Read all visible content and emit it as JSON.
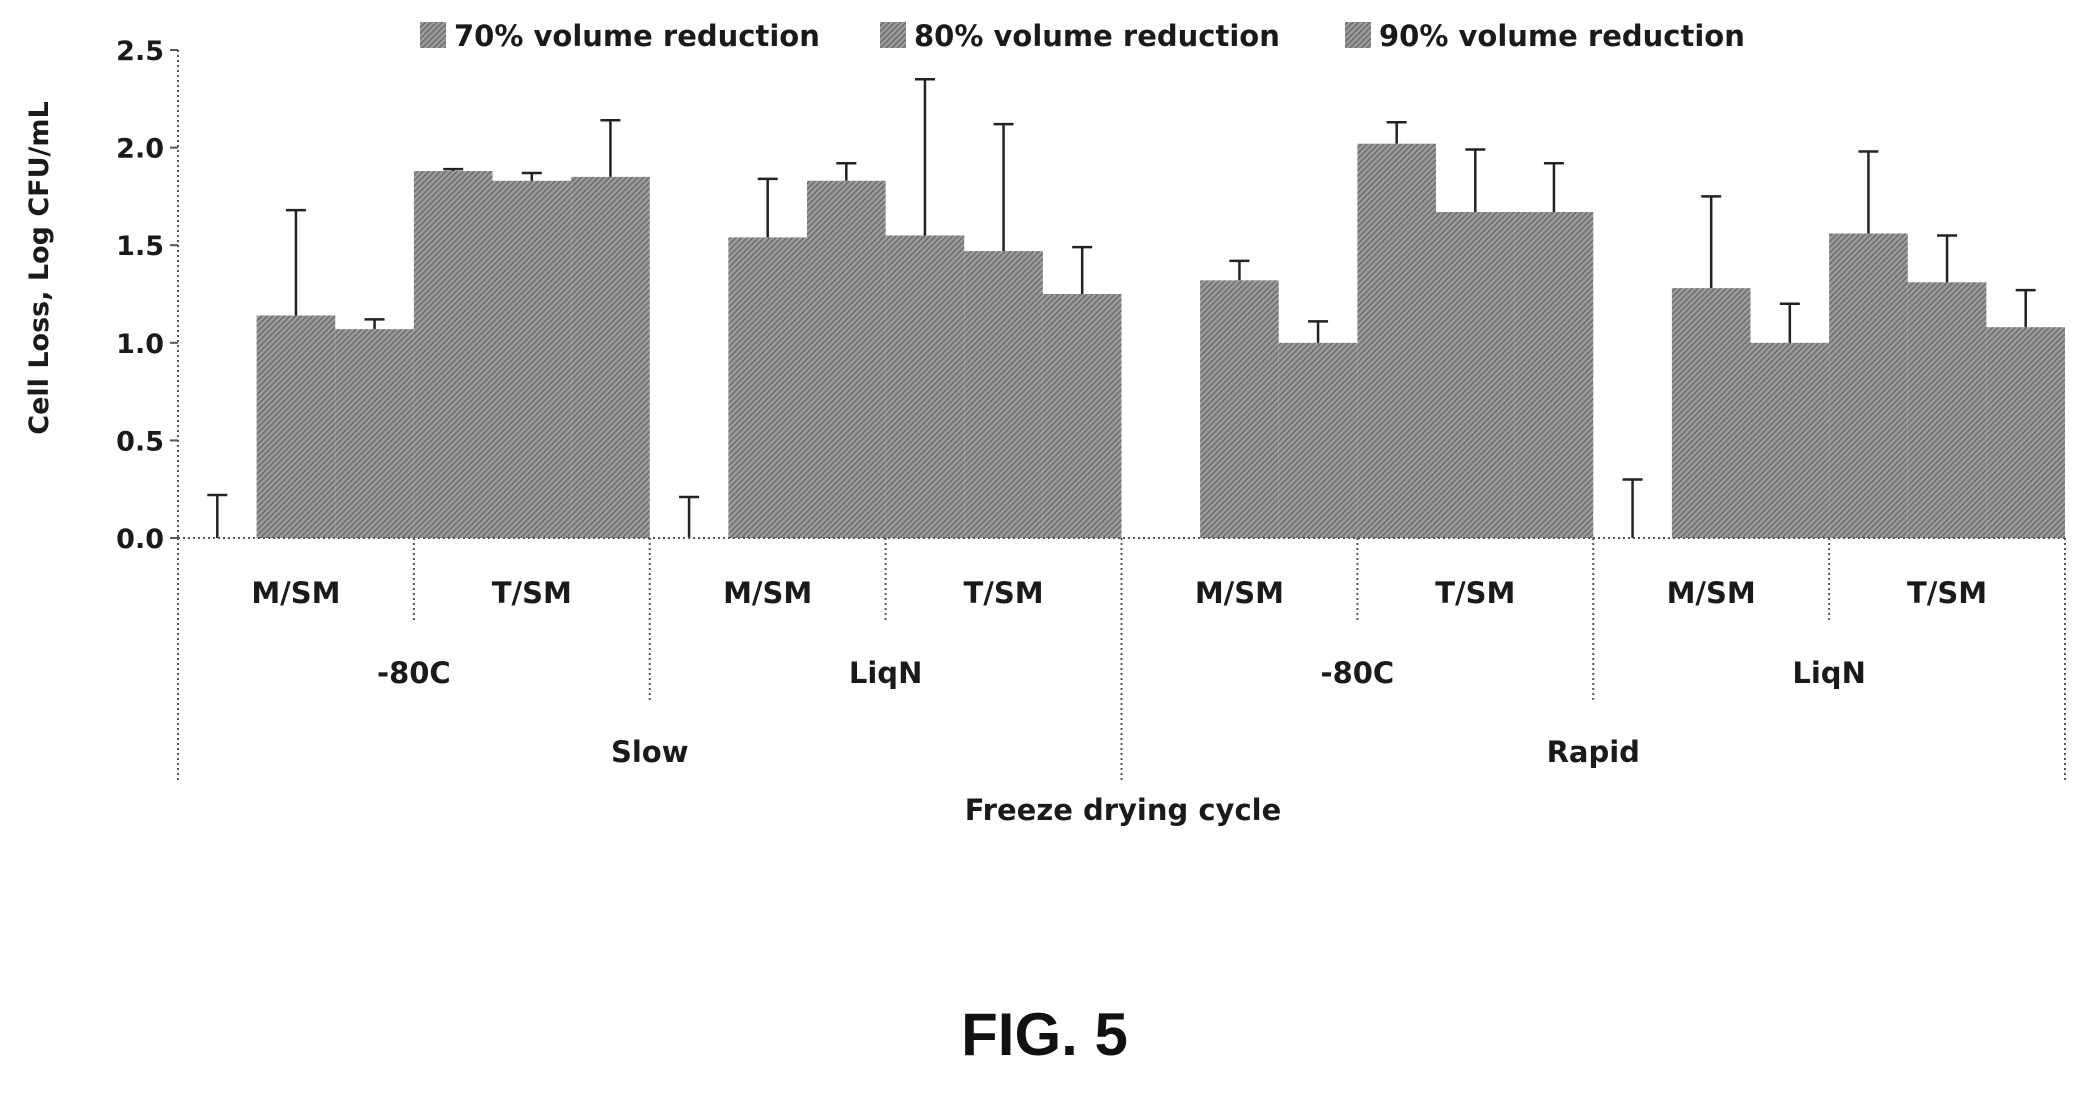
{
  "figure_caption": "FIG. 5",
  "chart_data": {
    "type": "bar",
    "title": "",
    "xlabel": "Freeze drying cycle",
    "ylabel": "Cell Loss, Log CFU/mL",
    "ylim": [
      0,
      2.5
    ],
    "yticks": [
      "0.0",
      "0.5",
      "1.0",
      "1.5",
      "2.0",
      "2.5"
    ],
    "legend_position": "top",
    "grid": false,
    "categories": [
      {
        "cycle": "Slow",
        "freeze": "-80C",
        "medium": "M/SM"
      },
      {
        "cycle": "Slow",
        "freeze": "-80C",
        "medium": "T/SM"
      },
      {
        "cycle": "Slow",
        "freeze": "LiqN",
        "medium": "M/SM"
      },
      {
        "cycle": "Slow",
        "freeze": "LiqN",
        "medium": "T/SM"
      },
      {
        "cycle": "Rapid",
        "freeze": "-80C",
        "medium": "M/SM"
      },
      {
        "cycle": "Rapid",
        "freeze": "-80C",
        "medium": "T/SM"
      },
      {
        "cycle": "Rapid",
        "freeze": "LiqN",
        "medium": "M/SM"
      },
      {
        "cycle": "Rapid",
        "freeze": "LiqN",
        "medium": "T/SM"
      }
    ],
    "level1_labels": [
      "M/SM",
      "T/SM",
      "M/SM",
      "T/SM",
      "M/SM",
      "T/SM",
      "M/SM",
      "T/SM"
    ],
    "level2_labels": [
      "-80C",
      "LiqN",
      "-80C",
      "LiqN"
    ],
    "level3_labels": [
      "Slow",
      "Rapid"
    ],
    "series": [
      {
        "name": "70% volume reduction",
        "values": [
          0.0,
          1.88,
          0.0,
          1.55,
          0.0,
          2.02,
          0.0,
          1.56
        ],
        "errors": [
          0.22,
          0.01,
          0.21,
          0.8,
          0.0,
          0.11,
          0.3,
          0.42
        ]
      },
      {
        "name": "80% volume reduction",
        "values": [
          1.14,
          1.83,
          1.54,
          1.47,
          1.32,
          1.67,
          1.28,
          1.31
        ],
        "errors": [
          0.54,
          0.04,
          0.3,
          0.65,
          0.1,
          0.32,
          0.47,
          0.24
        ]
      },
      {
        "name": "90% volume reduction",
        "values": [
          1.07,
          1.85,
          1.83,
          1.25,
          1.0,
          1.67,
          1.0,
          1.08
        ],
        "errors": [
          0.05,
          0.29,
          0.09,
          0.24,
          0.11,
          0.25,
          0.2,
          0.19
        ]
      }
    ],
    "colors": {
      "bar": "#8e8e8e",
      "hatch": "#5f5f5f",
      "axis": "#555555"
    }
  }
}
